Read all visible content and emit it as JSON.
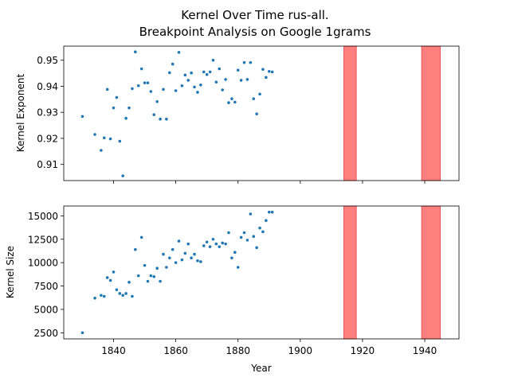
{
  "chart_data": [
    {
      "type": "scatter",
      "title": "Kernel Over Time rus-all.",
      "subtitle": "Breakpoint Analysis on Google 1grams",
      "xlabel": "",
      "ylabel": "Kernel Exponent",
      "xlim": [
        1824,
        1951
      ],
      "ylim": [
        0.9038,
        0.9554
      ],
      "yticks": [
        0.91,
        0.92,
        0.93,
        0.94,
        0.95
      ],
      "ytick_labels": [
        "0.91",
        "0.92",
        "0.93",
        "0.94",
        "0.95"
      ],
      "xticks": [
        1840,
        1860,
        1880,
        1900,
        1920,
        1940
      ],
      "xtick_labels": [
        "",
        "",
        "",
        "",
        "",
        ""
      ],
      "grid": false,
      "point_color": "#1f77b4",
      "breakpoint_color": "#ff7f7f",
      "breakpoints": [
        [
          1914,
          1918
        ],
        [
          1939,
          1945
        ]
      ],
      "x": [
        1830,
        1834,
        1836,
        1837,
        1838,
        1839,
        1840,
        1841,
        1842,
        1843,
        1844,
        1845,
        1846,
        1847,
        1848,
        1849,
        1850,
        1851,
        1852,
        1853,
        1854,
        1855,
        1856,
        1857,
        1858,
        1859,
        1860,
        1861,
        1862,
        1863,
        1864,
        1865,
        1866,
        1867,
        1868,
        1869,
        1870,
        1871,
        1872,
        1873,
        1874,
        1875,
        1876,
        1877,
        1878,
        1879,
        1880,
        1881,
        1882,
        1883,
        1884,
        1885,
        1886,
        1887,
        1888,
        1889,
        1890,
        1891
      ],
      "y": [
        0.9284,
        0.9215,
        0.9154,
        0.9202,
        0.9388,
        0.9198,
        0.9317,
        0.9357,
        0.9189,
        0.9056,
        0.9277,
        0.9317,
        0.9391,
        0.9532,
        0.9402,
        0.9467,
        0.9413,
        0.9413,
        0.938,
        0.9291,
        0.9341,
        0.9274,
        0.9388,
        0.9274,
        0.9452,
        0.9485,
        0.9383,
        0.953,
        0.9402,
        0.9443,
        0.9423,
        0.9451,
        0.9397,
        0.9377,
        0.9405,
        0.9455,
        0.9445,
        0.9455,
        0.95,
        0.9416,
        0.9467,
        0.9386,
        0.9426,
        0.9337,
        0.9352,
        0.9339,
        0.9462,
        0.9423,
        0.9491,
        0.9426,
        0.9491,
        0.9352,
        0.9294,
        0.937,
        0.9465,
        0.9434,
        0.9457,
        0.9455
      ]
    },
    {
      "type": "scatter",
      "title": "",
      "xlabel": "Year",
      "ylabel": "Kernel Size",
      "xlim": [
        1824,
        1951
      ],
      "ylim": [
        1850,
        16050
      ],
      "yticks": [
        2500,
        5000,
        7500,
        10000,
        12500,
        15000
      ],
      "ytick_labels": [
        "2500",
        "5000",
        "7500",
        "10000",
        "12500",
        "15000"
      ],
      "xticks": [
        1840,
        1860,
        1880,
        1900,
        1920,
        1940
      ],
      "xtick_labels": [
        "1840",
        "1860",
        "1880",
        "1900",
        "1920",
        "1940"
      ],
      "grid": false,
      "point_color": "#1f77b4",
      "breakpoint_color": "#ff7f7f",
      "breakpoints": [
        [
          1914,
          1918
        ],
        [
          1939,
          1945
        ]
      ],
      "x": [
        1830,
        1834,
        1836,
        1837,
        1838,
        1839,
        1840,
        1841,
        1842,
        1843,
        1844,
        1845,
        1846,
        1847,
        1848,
        1849,
        1850,
        1851,
        1852,
        1853,
        1854,
        1855,
        1856,
        1857,
        1858,
        1859,
        1860,
        1861,
        1862,
        1863,
        1864,
        1865,
        1866,
        1867,
        1868,
        1869,
        1870,
        1871,
        1872,
        1873,
        1874,
        1875,
        1876,
        1877,
        1878,
        1879,
        1880,
        1881,
        1882,
        1883,
        1884,
        1885,
        1886,
        1887,
        1888,
        1889,
        1890,
        1891
      ],
      "y": [
        2500,
        6200,
        6500,
        6400,
        8400,
        8100,
        9000,
        7100,
        6700,
        6500,
        6700,
        7900,
        6400,
        11400,
        8600,
        12700,
        9700,
        8000,
        8600,
        8500,
        9400,
        8000,
        10900,
        9500,
        10500,
        11400,
        10000,
        12300,
        10300,
        11000,
        12000,
        10500,
        10900,
        10200,
        10100,
        11800,
        12200,
        11700,
        12500,
        12000,
        11700,
        12100,
        12000,
        13200,
        10500,
        11100,
        9500,
        12700,
        13200,
        12400,
        15200,
        12800,
        11600,
        13700,
        13300,
        14500,
        15400,
        15400
      ]
    }
  ]
}
